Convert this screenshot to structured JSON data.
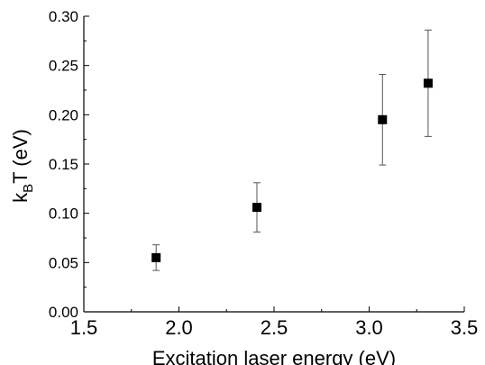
{
  "chart_data": {
    "type": "scatter",
    "xlabel": "Excitation laser energy (eV)",
    "ylabel": {
      "base": "k",
      "subscript": "B",
      "rest": "T (eV)"
    },
    "xlim": [
      1.5,
      3.5
    ],
    "ylim": [
      0.0,
      0.3
    ],
    "x_ticks": [
      "1.5",
      "2.0",
      "2.5",
      "3.0",
      "3.5"
    ],
    "y_ticks": [
      "0.00",
      "0.05",
      "0.10",
      "0.15",
      "0.20",
      "0.25",
      "0.30"
    ],
    "grid": false,
    "marker": "square",
    "marker_color": "#000000",
    "points": [
      {
        "x": 1.88,
        "y": 0.055,
        "err_low": 0.042,
        "err_high": 0.068
      },
      {
        "x": 2.41,
        "y": 0.106,
        "err_low": 0.081,
        "err_high": 0.131
      },
      {
        "x": 3.07,
        "y": 0.195,
        "err_low": 0.149,
        "err_high": 0.241
      },
      {
        "x": 3.31,
        "y": 0.232,
        "err_low": 0.178,
        "err_high": 0.286
      }
    ]
  }
}
